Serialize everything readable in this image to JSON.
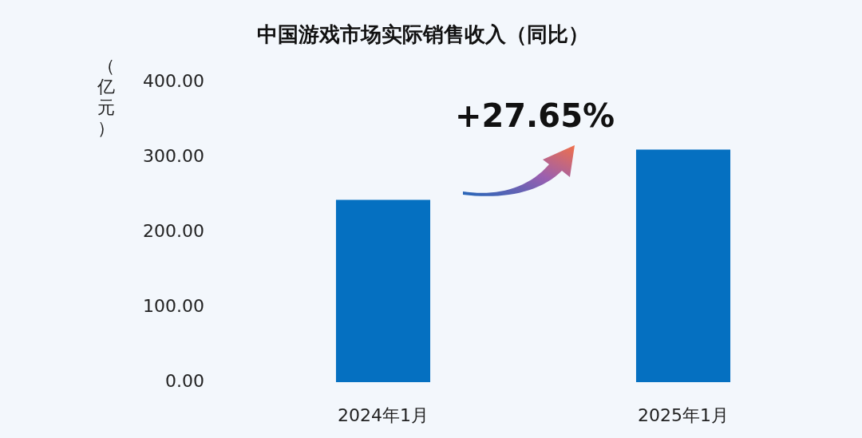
{
  "chart_data": {
    "type": "bar",
    "title": "中国游戏市场实际销售收入（同比）",
    "ylabel": "（亿元）",
    "categories": [
      "2024年1月",
      "2025年1月"
    ],
    "values": [
      243,
      310
    ],
    "color": "#0570c1",
    "ylim": [
      0,
      400
    ],
    "yticks": [
      {
        "value": 0,
        "label": "0.00"
      },
      {
        "value": 100,
        "label": "100.00"
      },
      {
        "value": 200,
        "label": "200.00"
      },
      {
        "value": 300,
        "label": "300.00"
      },
      {
        "value": 400,
        "label": "400.00"
      }
    ],
    "grid": false,
    "legend": false,
    "annotations": [
      "+27.65%"
    ]
  }
}
